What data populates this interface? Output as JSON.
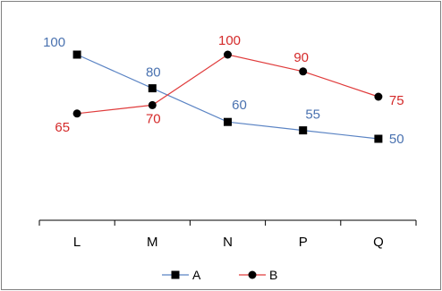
{
  "chart_data": {
    "type": "line",
    "categories": [
      "L",
      "M",
      "N",
      "P",
      "Q"
    ],
    "series": [
      {
        "name": "A",
        "values": [
          100,
          80,
          60,
          55,
          50
        ],
        "color": "#5b84c4",
        "label_color": "#4a72b0",
        "marker": "square",
        "marker_color": "#000000"
      },
      {
        "name": "B",
        "values": [
          65,
          70,
          100,
          90,
          75
        ],
        "color": "#e03c3c",
        "label_color": "#d42a2a",
        "marker": "circle",
        "marker_color": "#000000"
      }
    ],
    "ylim": [
      0,
      100
    ],
    "grid": false,
    "legend_position": "bottom",
    "border_color": "#808080"
  }
}
